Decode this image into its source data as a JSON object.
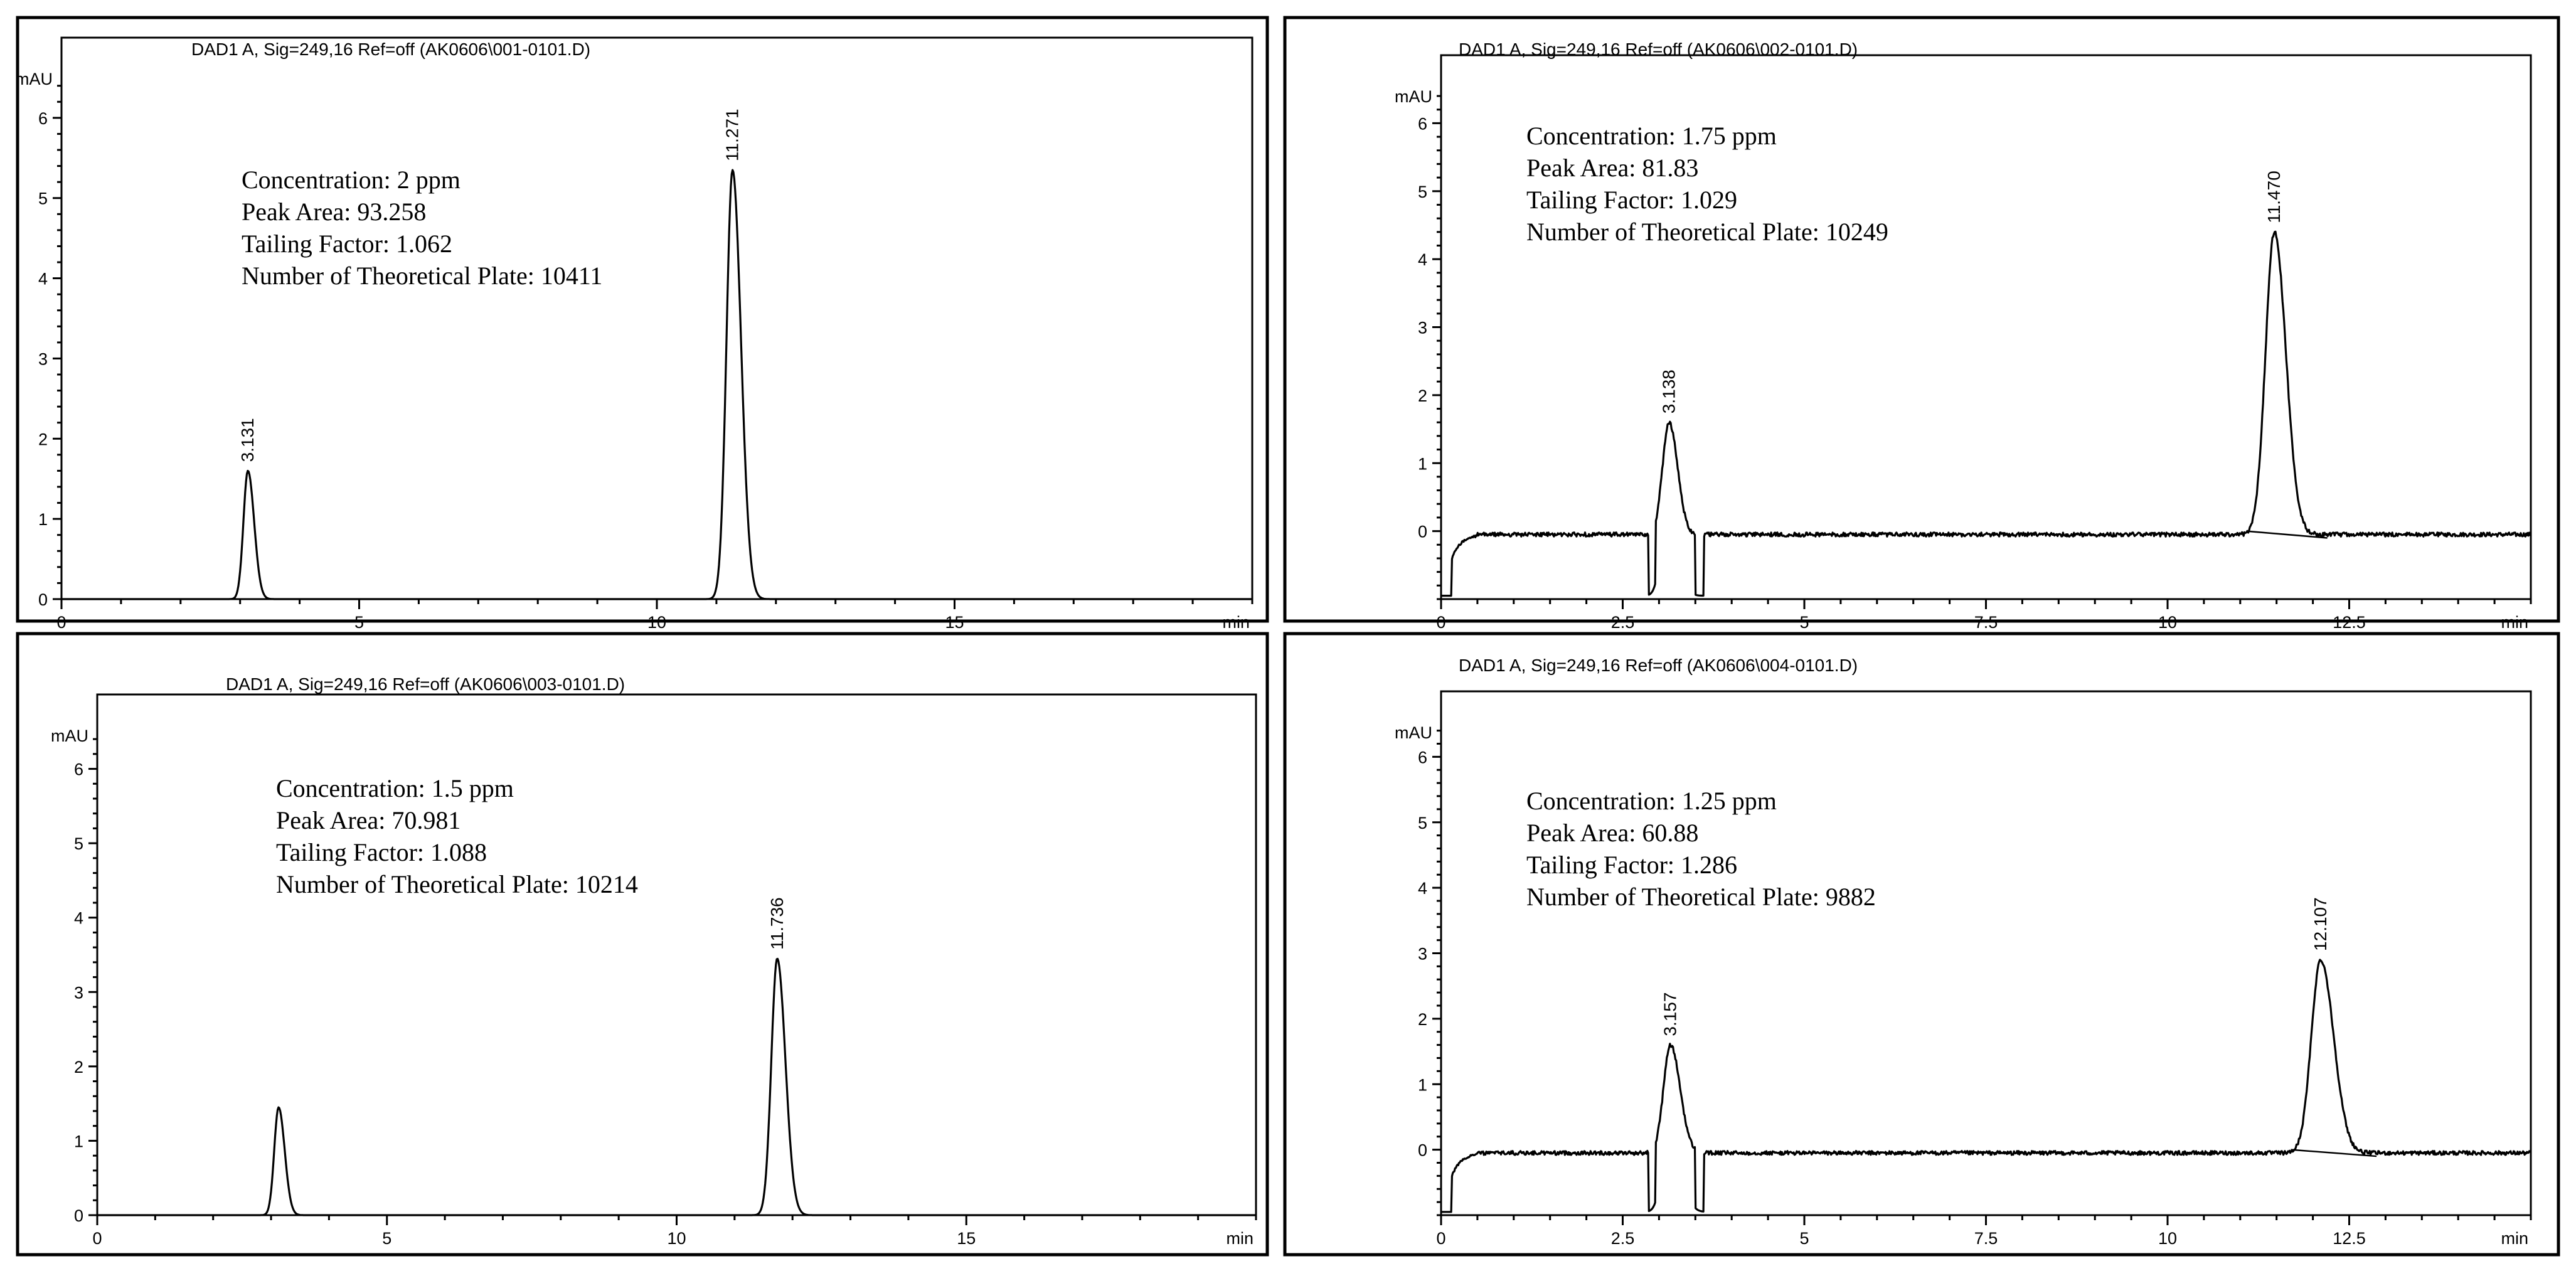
{
  "chart_data": [
    {
      "type": "line",
      "header": "DAD1 A, Sig=249,16 Ref=off (AK0606\\001-0101.D)",
      "ylabel": "mAU",
      "xunit": "min",
      "xlim": [
        0,
        20
      ],
      "ylim": [
        0,
        7
      ],
      "xticks": [
        0,
        5,
        10,
        15
      ],
      "yticks": [
        0,
        1,
        2,
        3,
        4,
        5,
        6
      ],
      "baseline": 0.0,
      "noise": 0.0,
      "annotation": [
        "Concentration: 2 ppm",
        "Peak Area: 93.258",
        "Tailing Factor: 1.062",
        "Number of Theoretical Plate: 10411"
      ],
      "peaks": [
        {
          "rt": 3.131,
          "height": 1.6,
          "label": "3.131"
        },
        {
          "rt": 11.271,
          "height": 5.35,
          "label": "11.271"
        }
      ]
    },
    {
      "type": "line",
      "header": "DAD1 A, Sig=249,16 Ref=off (AK0606\\002-0101.D)",
      "ylabel": "mAU",
      "xunit": "min",
      "xlim": [
        0,
        15
      ],
      "ylim": [
        -1,
        7
      ],
      "xticks": [
        0,
        2.5,
        5,
        7.5,
        10,
        12.5
      ],
      "yticks": [
        0,
        1,
        2,
        3,
        4,
        5,
        6
      ],
      "baseline": -0.05,
      "noise": 0.03,
      "annotation": [
        "Concentration: 1.75 ppm",
        "Peak Area: 81.83",
        "Tailing Factor: 1.029",
        "Number of Theoretical Plate: 10249"
      ],
      "peaks": [
        {
          "rt": 3.138,
          "height": 1.65,
          "label": "3.138"
        },
        {
          "rt": 11.47,
          "height": 4.45,
          "label": "11.470"
        }
      ]
    },
    {
      "type": "line",
      "header": "DAD1 A, Sig=249,16 Ref=off (AK0606\\003-0101.D)",
      "ylabel": "mAU",
      "xunit": "min",
      "xlim": [
        0,
        20
      ],
      "ylim": [
        0,
        7
      ],
      "xticks": [
        0,
        5,
        10,
        15
      ],
      "yticks": [
        0,
        1,
        2,
        3,
        4,
        5,
        6
      ],
      "baseline": 0.0,
      "noise": 0.0,
      "annotation": [
        "Concentration: 1.5 ppm",
        "Peak Area: 70.981",
        "Tailing Factor: 1.088",
        "Number of Theoretical Plate: 10214"
      ],
      "peaks": [
        {
          "rt": 3.13,
          "height": 1.45,
          "label": ""
        },
        {
          "rt": 11.736,
          "height": 3.45,
          "label": "11.736"
        }
      ]
    },
    {
      "type": "line",
      "header": "DAD1 A, Sig=249,16 Ref=off (AK0606\\004-0101.D)",
      "ylabel": "mAU",
      "xunit": "min",
      "xlim": [
        0,
        15
      ],
      "ylim": [
        -1,
        7
      ],
      "xticks": [
        0,
        2.5,
        5,
        7.5,
        10,
        12.5
      ],
      "yticks": [
        0,
        1,
        2,
        3,
        4,
        5,
        6
      ],
      "baseline": -0.05,
      "noise": 0.03,
      "annotation": [
        "Concentration: 1.25 ppm",
        "Peak Area: 60.88",
        "Tailing Factor: 1.286",
        "Number of Theoretical Plate: 9882"
      ],
      "peaks": [
        {
          "rt": 3.157,
          "height": 1.65,
          "label": "3.157"
        },
        {
          "rt": 12.107,
          "height": 2.95,
          "label": "12.107"
        }
      ]
    }
  ]
}
